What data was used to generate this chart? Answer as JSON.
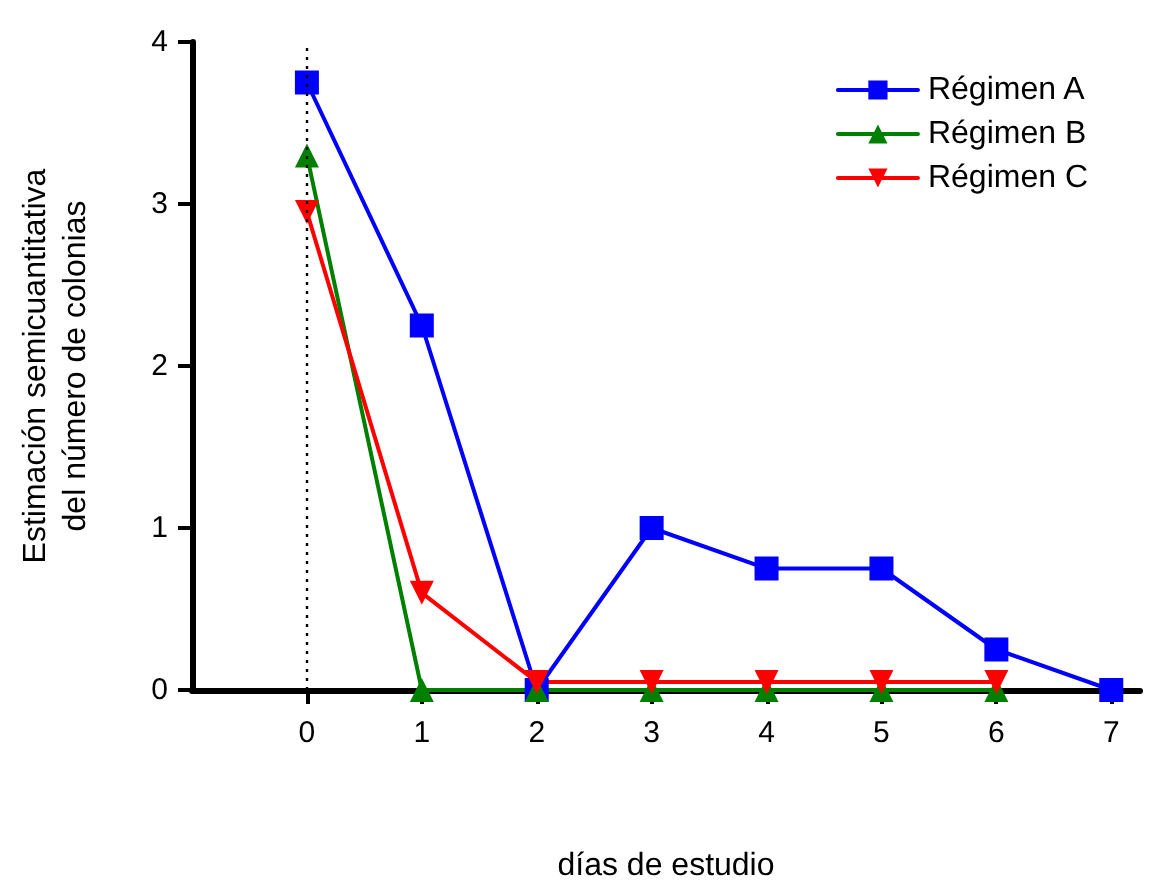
{
  "chart_data": {
    "type": "line",
    "xlabel": "días de estudio",
    "ylabel": "Estimación semicuantitativa\ndel número de colonias",
    "x": [
      0,
      1,
      2,
      3,
      4,
      5,
      6,
      7
    ],
    "series": [
      {
        "name": "Régimen A",
        "color": "#0000ff",
        "marker": "square",
        "values": [
          3.75,
          2.25,
          0,
          1,
          0.75,
          0.75,
          0.25,
          0
        ]
      },
      {
        "name": "Régimen B",
        "color": "#008000",
        "marker": "triangle",
        "values": [
          3.3,
          0,
          0,
          0,
          0,
          0,
          0,
          null
        ]
      },
      {
        "name": "Régimen C",
        "color": "#ff0000",
        "marker": "triangle-down",
        "values": [
          2.95,
          0.6,
          0.05,
          0.05,
          0.05,
          0.05,
          0.05,
          null
        ]
      }
    ],
    "xlim": [
      -1,
      7.25
    ],
    "xticks": [
      0,
      1,
      2,
      3,
      4,
      5,
      6,
      7
    ],
    "ylim": [
      0,
      4
    ],
    "yticks": [
      0,
      1,
      2,
      3,
      4
    ],
    "ref_lines": [
      {
        "axis": "x",
        "value": 0,
        "color": "#000000",
        "line_style": "dotted"
      }
    ],
    "grid": false,
    "legend": "top right"
  }
}
